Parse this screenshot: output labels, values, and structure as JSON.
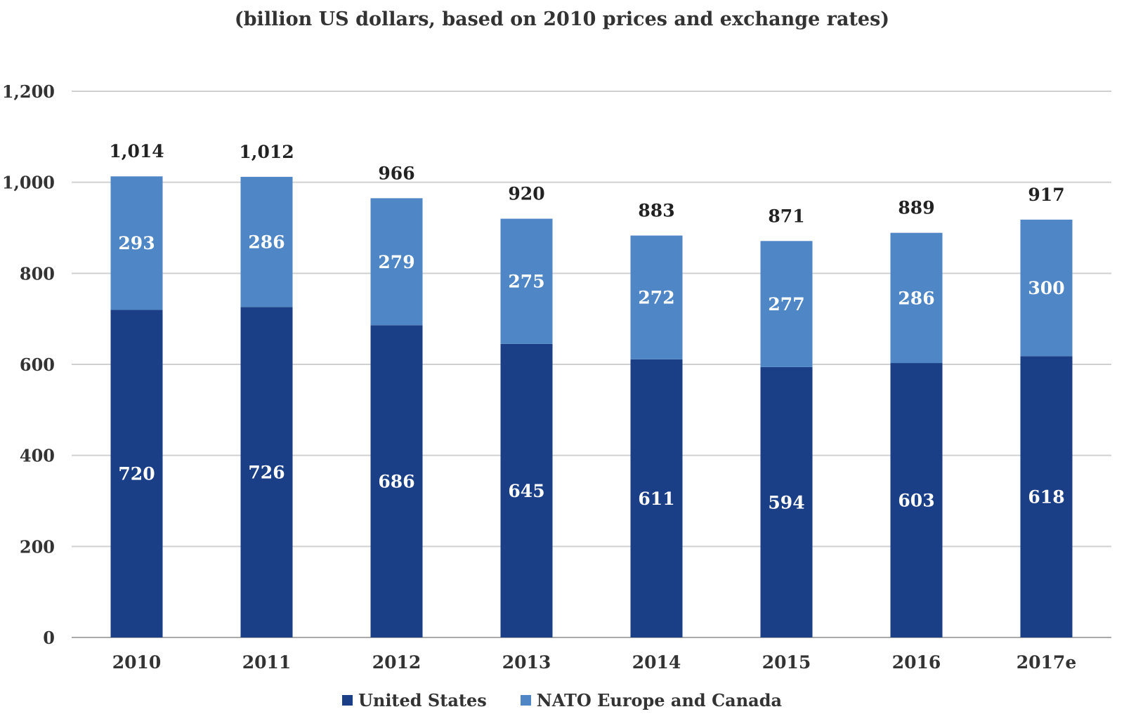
{
  "chart_data": {
    "type": "bar",
    "stacked": true,
    "subtitle": "(billion US dollars, based on 2010 prices and exchange rates)",
    "categories": [
      "2010",
      "2011",
      "2012",
      "2013",
      "2014",
      "2015",
      "2016",
      "2017e"
    ],
    "series": [
      {
        "name": "United States",
        "color": "#1a3f87",
        "values": [
          720,
          726,
          686,
          645,
          611,
          594,
          603,
          618
        ]
      },
      {
        "name": "NATO Europe and Canada",
        "color": "#4f86c6",
        "values": [
          293,
          286,
          279,
          275,
          272,
          277,
          286,
          300
        ]
      }
    ],
    "totals": [
      "1,014",
      "1,012",
      "966",
      "920",
      "883",
      "871",
      "889",
      "917"
    ],
    "yticks": [
      "0",
      "200",
      "400",
      "600",
      "800",
      "1,000",
      "1,200"
    ],
    "ylim": [
      0,
      1200
    ],
    "grid": true,
    "legend_position": "bottom"
  }
}
